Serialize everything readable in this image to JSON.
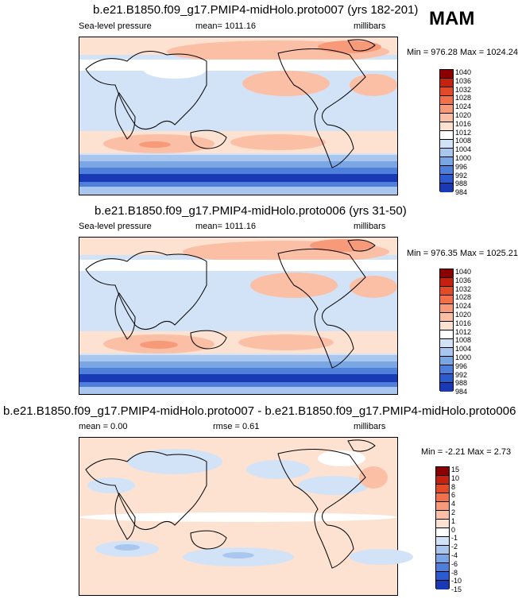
{
  "season_label": "MAM",
  "colors": {
    "abs_scale": [
      "#8b0000",
      "#c4210f",
      "#e34a28",
      "#f2714a",
      "#f79a7a",
      "#fbbfa6",
      "#fde2d2",
      "#ffffff",
      "#d3e3f7",
      "#a9c7ee",
      "#7aa6e4",
      "#4d7fdb",
      "#2a5bcf",
      "#1a3ab5",
      "#0a1f8c"
    ],
    "diff_scale": [
      "#8b0000",
      "#c4210f",
      "#e34a28",
      "#f2714a",
      "#f79a7a",
      "#fbbfa6",
      "#fde2d2",
      "#ffffff",
      "#d3e3f7",
      "#a9c7ee",
      "#7aa6e4",
      "#4d7fdb",
      "#2a5bcf",
      "#1a3ab5",
      "#0a1f8c"
    ]
  },
  "panels": [
    {
      "title": "b.e21.B1850.f09_g17.PMIP4-midHolo.proto007 (yrs 182-201)",
      "left_label": "Sea-level pressure",
      "mean_label": "mean= 1011.16",
      "units": "millibars",
      "minmax": "Min = 976.28 Max = 1024.24"
    },
    {
      "title": "b.e21.B1850.f09_g17.PMIP4-midHolo.proto006 (yrs 31-50)",
      "left_label": "Sea-level pressure",
      "mean_label": "mean= 1011.16",
      "units": "millibars",
      "minmax": "Min = 976.35 Max = 1025.21"
    },
    {
      "title": "b.e21.B1850.f09_g17.PMIP4-midHolo.proto007 - b.e21.B1850.f09_g17.PMIP4-midHolo.proto006",
      "left_label": "mean =   0.00",
      "mean_label": "rmse =   0.61",
      "units": "millibars",
      "minmax": "Min =  -2.21 Max =   2.73"
    }
  ],
  "chart_data": [
    {
      "type": "heatmap",
      "title": "b.e21.B1850.f09_g17.PMIP4-midHolo.proto007 (yrs 182-201)",
      "variable": "Sea-level pressure",
      "units": "millibars",
      "mean": 1011.16,
      "min": 976.28,
      "max": 1024.24,
      "colorbar_levels": [
        "1040",
        "1036",
        "1032",
        "1028",
        "1024",
        "1020",
        "1016",
        "1012",
        "1008",
        "1004",
        "1000",
        "996",
        "992",
        "988",
        "984"
      ]
    },
    {
      "type": "heatmap",
      "title": "b.e21.B1850.f09_g17.PMIP4-midHolo.proto006 (yrs 31-50)",
      "variable": "Sea-level pressure",
      "units": "millibars",
      "mean": 1011.16,
      "min": 976.35,
      "max": 1025.21,
      "colorbar_levels": [
        "1040",
        "1036",
        "1032",
        "1028",
        "1024",
        "1020",
        "1016",
        "1012",
        "1008",
        "1004",
        "1000",
        "996",
        "992",
        "988",
        "984"
      ]
    },
    {
      "type": "heatmap",
      "title": "b.e21.B1850.f09_g17.PMIP4-midHolo.proto007 - b.e21.B1850.f09_g17.PMIP4-midHolo.proto006",
      "units": "millibars",
      "mean": 0.0,
      "rmse": 0.61,
      "min": -2.21,
      "max": 2.73,
      "colorbar_levels": [
        "15",
        "10",
        "8",
        "6",
        "4",
        "2",
        "1",
        "0",
        "-1",
        "-2",
        "-4",
        "-6",
        "-8",
        "-10",
        "-15"
      ]
    }
  ]
}
